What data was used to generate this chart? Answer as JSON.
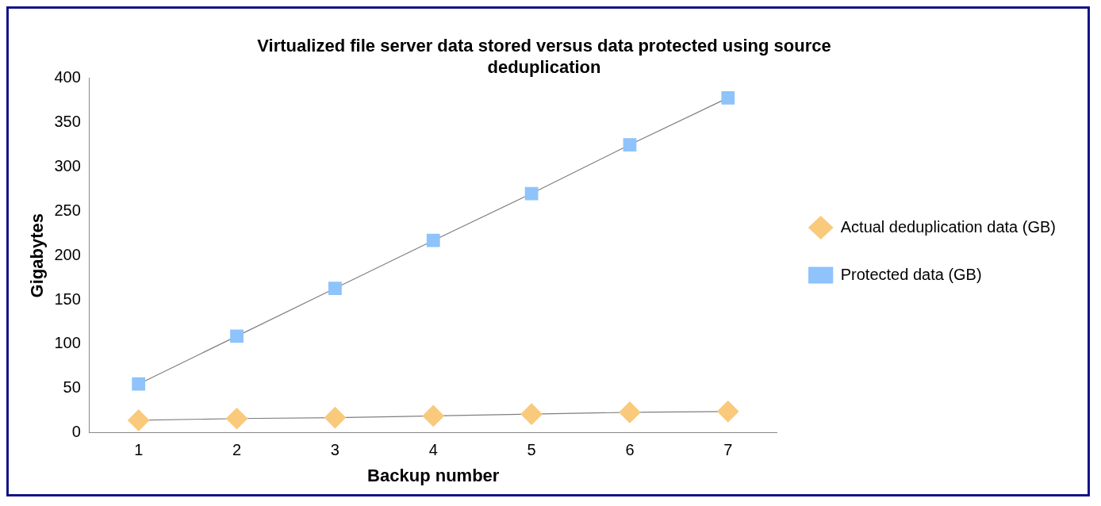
{
  "chart_data": {
    "type": "line",
    "title": "Virtualized file server data stored versus data protected using source deduplication",
    "xlabel": "Backup number",
    "ylabel": "Gigabytes",
    "categories": [
      "1",
      "2",
      "3",
      "4",
      "5",
      "6",
      "7"
    ],
    "series": [
      {
        "name": "Actual deduplication data (GB)",
        "color": "#f9c97c",
        "marker": "diamond",
        "values": [
          14,
          16,
          17,
          19,
          21,
          23,
          24
        ]
      },
      {
        "name": "Protected data (GB)",
        "color": "#8ec3fb",
        "marker": "square",
        "values": [
          55,
          109,
          163,
          217,
          270,
          325,
          378
        ]
      }
    ],
    "ylim": [
      0,
      400
    ],
    "yticks": [
      0,
      50,
      100,
      150,
      200,
      250,
      300,
      350,
      400
    ],
    "grid": false,
    "legend": "right",
    "line_style": "solid"
  }
}
